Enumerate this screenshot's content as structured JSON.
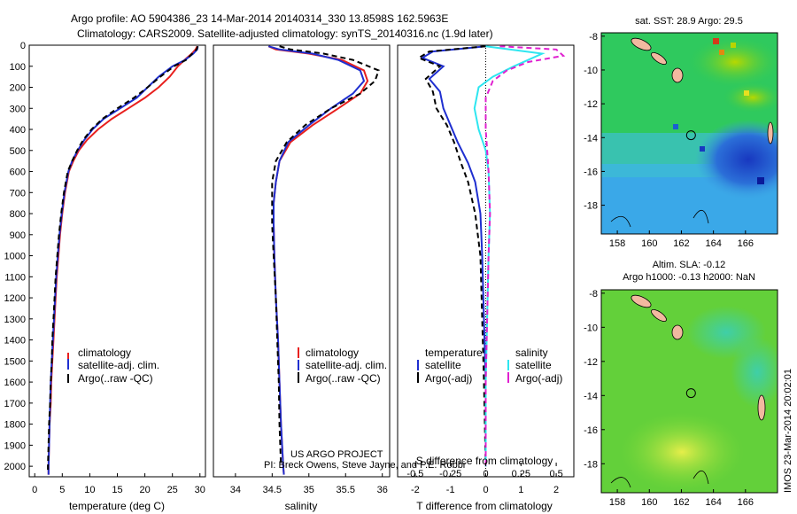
{
  "header": {
    "title_line1": "Argo profile: AO 5904386_23 14-Mar-2014 20140314_330 13.8598S 162.5963E",
    "title_line2": "Climatology: CARS2009. Satellite-adjusted climatology: synTS_20140316.nc (1.9d later)"
  },
  "colors": {
    "climatology": "#e8201e",
    "satellite": "#1f2fd0",
    "argo": "#000000",
    "satellite_s": "#2ee6f0",
    "argo_s": "#e020d0"
  },
  "chart_data": [
    {
      "type": "line",
      "id": "temperature",
      "xlabel": "temperature (deg C)",
      "ylabel": "",
      "xlim": [
        -1,
        31
      ],
      "ylim": [
        2050,
        0
      ],
      "xticks": [
        0,
        5,
        10,
        15,
        20,
        25,
        30
      ],
      "yticks": [
        0,
        100,
        200,
        300,
        400,
        500,
        600,
        700,
        800,
        900,
        1000,
        1100,
        1200,
        1300,
        1400,
        1500,
        1600,
        1700,
        1800,
        1900,
        2000
      ],
      "series": [
        {
          "name": "climatology",
          "color_key": "climatology",
          "dash": "",
          "points": [
            [
              29.5,
              5
            ],
            [
              29.2,
              20
            ],
            [
              28.5,
              40
            ],
            [
              27.2,
              70
            ],
            [
              26,
              100
            ],
            [
              24.5,
              150
            ],
            [
              22.5,
              200
            ],
            [
              20,
              250
            ],
            [
              17,
              300
            ],
            [
              14,
              350
            ],
            [
              11.5,
              400
            ],
            [
              9.5,
              450
            ],
            [
              8,
              500
            ],
            [
              7,
              550
            ],
            [
              6.2,
              600
            ],
            [
              5.5,
              700
            ],
            [
              5,
              800
            ],
            [
              4.6,
              900
            ],
            [
              4.3,
              1000
            ],
            [
              4,
              1100
            ],
            [
              3.8,
              1200
            ],
            [
              3.6,
              1300
            ],
            [
              3.4,
              1400
            ],
            [
              3.2,
              1500
            ],
            [
              3,
              1600
            ],
            [
              2.9,
              1700
            ],
            [
              2.7,
              1800
            ],
            [
              2.6,
              1900
            ],
            [
              2.5,
              2000
            ],
            [
              2.5,
              2040
            ]
          ]
        },
        {
          "name": "satellite-adj. clim.",
          "color_key": "satellite",
          "dash": "",
          "points": [
            [
              29.6,
              5
            ],
            [
              29.5,
              20
            ],
            [
              28.8,
              40
            ],
            [
              27.3,
              70
            ],
            [
              25,
              100
            ],
            [
              22.5,
              150
            ],
            [
              20.5,
              200
            ],
            [
              18.5,
              250
            ],
            [
              15.5,
              300
            ],
            [
              12.5,
              350
            ],
            [
              10.5,
              400
            ],
            [
              9,
              450
            ],
            [
              7.8,
              500
            ],
            [
              6.8,
              550
            ],
            [
              6.1,
              600
            ],
            [
              5.4,
              700
            ],
            [
              4.9,
              800
            ],
            [
              4.5,
              900
            ],
            [
              4.2,
              1000
            ],
            [
              3.9,
              1100
            ],
            [
              3.7,
              1200
            ],
            [
              3.5,
              1300
            ],
            [
              3.3,
              1400
            ],
            [
              3.1,
              1500
            ],
            [
              2.9,
              1600
            ],
            [
              2.8,
              1700
            ],
            [
              2.7,
              1800
            ],
            [
              2.6,
              1900
            ],
            [
              2.5,
              2000
            ],
            [
              2.5,
              2040
            ]
          ]
        },
        {
          "name": "Argo(..raw -QC)",
          "color_key": "argo",
          "dash": "6 4",
          "points": [
            [
              29.6,
              5
            ],
            [
              29.4,
              20
            ],
            [
              28.6,
              40
            ],
            [
              27.5,
              70
            ],
            [
              25.3,
              100
            ],
            [
              22.8,
              150
            ],
            [
              20.5,
              200
            ],
            [
              18,
              250
            ],
            [
              15,
              300
            ],
            [
              12.3,
              350
            ],
            [
              10.3,
              400
            ],
            [
              8.8,
              450
            ],
            [
              7.7,
              500
            ],
            [
              6.8,
              550
            ],
            [
              6,
              600
            ],
            [
              5.3,
              700
            ],
            [
              4.8,
              800
            ],
            [
              4.4,
              900
            ],
            [
              4.1,
              1000
            ],
            [
              3.8,
              1100
            ],
            [
              3.6,
              1200
            ],
            [
              3.4,
              1300
            ],
            [
              3.2,
              1400
            ],
            [
              3.1,
              1500
            ],
            [
              2.9,
              1600
            ],
            [
              2.8,
              1700
            ],
            [
              2.6,
              1800
            ],
            [
              2.5,
              1900
            ],
            [
              2.4,
              2000
            ],
            [
              2.4,
              2030
            ]
          ]
        }
      ],
      "legend": [
        "climatology",
        "satellite-adj. clim.",
        "Argo(..raw -QC)"
      ]
    },
    {
      "type": "line",
      "id": "salinity",
      "xlabel": "salinity",
      "xlim": [
        33.7,
        36.1
      ],
      "ylim": [
        2050,
        0
      ],
      "xticks": [
        34,
        34.5,
        35,
        35.5,
        36
      ],
      "series": [
        {
          "name": "climatology",
          "color_key": "climatology",
          "dash": "",
          "points": [
            [
              34.45,
              5
            ],
            [
              34.55,
              20
            ],
            [
              35,
              40
            ],
            [
              35.45,
              70
            ],
            [
              35.75,
              120
            ],
            [
              35.8,
              170
            ],
            [
              35.7,
              230
            ],
            [
              35.4,
              300
            ],
            [
              35.05,
              380
            ],
            [
              34.75,
              460
            ],
            [
              34.6,
              550
            ],
            [
              34.55,
              650
            ],
            [
              34.52,
              750
            ],
            [
              34.52,
              850
            ],
            [
              34.53,
              1000
            ],
            [
              34.55,
              1200
            ],
            [
              34.58,
              1400
            ],
            [
              34.6,
              1600
            ],
            [
              34.62,
              1800
            ],
            [
              34.65,
              2000
            ],
            [
              34.66,
              2040
            ]
          ]
        },
        {
          "name": "satellite-adj. clim.",
          "color_key": "satellite",
          "dash": "",
          "points": [
            [
              34.45,
              5
            ],
            [
              34.6,
              20
            ],
            [
              35.05,
              40
            ],
            [
              35.4,
              70
            ],
            [
              35.7,
              120
            ],
            [
              35.75,
              170
            ],
            [
              35.6,
              230
            ],
            [
              35.3,
              300
            ],
            [
              35,
              380
            ],
            [
              34.72,
              460
            ],
            [
              34.6,
              550
            ],
            [
              34.55,
              650
            ],
            [
              34.52,
              750
            ],
            [
              34.52,
              850
            ],
            [
              34.53,
              1000
            ],
            [
              34.55,
              1200
            ],
            [
              34.58,
              1400
            ],
            [
              34.6,
              1600
            ],
            [
              34.62,
              1800
            ],
            [
              34.65,
              2000
            ],
            [
              34.66,
              2040
            ]
          ]
        },
        {
          "name": "Argo(..raw -QC)",
          "color_key": "argo",
          "dash": "6 4",
          "points": [
            [
              34.6,
              5
            ],
            [
              34.75,
              20
            ],
            [
              35.2,
              40
            ],
            [
              35.6,
              70
            ],
            [
              35.95,
              120
            ],
            [
              35.9,
              170
            ],
            [
              35.7,
              230
            ],
            [
              35.3,
              300
            ],
            [
              34.95,
              380
            ],
            [
              34.7,
              460
            ],
            [
              34.55,
              550
            ],
            [
              34.5,
              650
            ],
            [
              34.5,
              750
            ],
            [
              34.5,
              850
            ],
            [
              34.52,
              1000
            ],
            [
              34.55,
              1200
            ],
            [
              34.57,
              1400
            ],
            [
              34.59,
              1600
            ],
            [
              34.6,
              1800
            ],
            [
              34.62,
              2000
            ]
          ]
        }
      ],
      "legend": [
        "climatology",
        "satellite-adj. clim.",
        "Argo(..raw -QC)"
      ]
    },
    {
      "type": "line",
      "id": "differences",
      "xlabel": "T difference from climatology",
      "top_xlabel": "S difference from climatology",
      "xlim": [
        -2.5,
        2.5
      ],
      "ylim": [
        2050,
        0
      ],
      "xticks": [
        -2,
        -1,
        0,
        1,
        2
      ],
      "s_xlim": [
        -0.625,
        0.625
      ],
      "s_xticks": [
        -0.5,
        -0.25,
        0,
        0.25,
        0.5
      ],
      "s_xtick_labels": [
        "-0.5",
        "-0.25",
        "0",
        "0.25",
        "0.5"
      ],
      "series": [
        {
          "name": "satellite",
          "group": "temperature",
          "color_key": "satellite",
          "dash": "",
          "points": [
            [
              0,
              5
            ],
            [
              -1.5,
              30
            ],
            [
              -1.8,
              60
            ],
            [
              -1.2,
              100
            ],
            [
              -1.6,
              160
            ],
            [
              -1.3,
              220
            ],
            [
              -1.2,
              300
            ],
            [
              -1,
              380
            ],
            [
              -0.8,
              460
            ],
            [
              -0.5,
              560
            ],
            [
              -0.3,
              650
            ],
            [
              -0.15,
              800
            ],
            [
              -0.1,
              1000
            ],
            [
              -0.05,
              1300
            ],
            [
              0,
              1600
            ],
            [
              0,
              2000
            ]
          ]
        },
        {
          "name": "Argo(-adj)",
          "group": "temperature",
          "color_key": "argo",
          "dash": "6 4",
          "points": [
            [
              0,
              5
            ],
            [
              -1.6,
              30
            ],
            [
              -1.9,
              60
            ],
            [
              -1.3,
              100
            ],
            [
              -1.7,
              160
            ],
            [
              -1.5,
              220
            ],
            [
              -1.4,
              300
            ],
            [
              -1.1,
              380
            ],
            [
              -0.9,
              460
            ],
            [
              -0.7,
              560
            ],
            [
              -0.5,
              650
            ],
            [
              -0.3,
              800
            ],
            [
              -0.15,
              1000
            ],
            [
              -0.1,
              1300
            ],
            [
              -0.05,
              1600
            ],
            [
              0,
              2000
            ]
          ]
        },
        {
          "name": "satellite",
          "group": "salinity",
          "color_key": "satellite_s",
          "dash": "",
          "points": [
            [
              0,
              5
            ],
            [
              0.4,
              40
            ],
            [
              0.2,
              100
            ],
            [
              0.05,
              150
            ],
            [
              -0.05,
              200
            ],
            [
              -0.08,
              300
            ],
            [
              -0.05,
              400
            ],
            [
              0,
              500
            ],
            [
              0.02,
              600
            ],
            [
              0.03,
              800
            ],
            [
              0.02,
              1000
            ],
            [
              0.01,
              1300
            ],
            [
              0,
              1600
            ],
            [
              0,
              2000
            ]
          ]
        },
        {
          "name": "Argo(-adj)",
          "group": "salinity",
          "color_key": "argo_s",
          "dash": "6 4",
          "points": [
            [
              0.1,
              5
            ],
            [
              0.5,
              20
            ],
            [
              0.55,
              50
            ],
            [
              0.3,
              80
            ],
            [
              0.15,
              120
            ],
            [
              0.05,
              170
            ],
            [
              0,
              250
            ],
            [
              0,
              400
            ],
            [
              0.02,
              600
            ],
            [
              0.03,
              800
            ],
            [
              0.02,
              1000
            ],
            [
              0.01,
              1300
            ],
            [
              0,
              1600
            ],
            [
              0,
              2000
            ]
          ]
        }
      ],
      "legend_temperature": {
        "title": "temperature",
        "items": [
          "satellite",
          "Argo(-adj)"
        ]
      },
      "legend_salinity": {
        "title": "salinity",
        "items": [
          "satellite",
          "Argo(-adj)"
        ]
      }
    },
    {
      "type": "heatmap",
      "id": "sst_map",
      "title": "sat. SST: 28.9 Argo: 29.5",
      "xlim": [
        157,
        168
      ],
      "ylim": [
        -19.7,
        -7.8
      ],
      "xticks": [
        158,
        160,
        162,
        164,
        166
      ],
      "yticks": [
        -8,
        -10,
        -12,
        -14,
        -16,
        -18
      ],
      "argo_position": [
        162.6,
        -13.86
      ]
    },
    {
      "type": "heatmap",
      "id": "sla_map",
      "title_line1": "Altim. SLA: -0.12",
      "title_line2": "Argo h1000: -0.13 h2000: NaN",
      "xlim": [
        157,
        168
      ],
      "ylim": [
        -19.7,
        -7.8
      ],
      "xticks": [
        158,
        160,
        162,
        164,
        166
      ],
      "yticks": [
        -8,
        -10,
        -12,
        -14,
        -16,
        -18
      ],
      "argo_position": [
        162.6,
        -13.86
      ]
    }
  ],
  "footer": {
    "project_line1": "US ARGO PROJECT",
    "project_line2": "PI: Breck Owens, Steve Jayne, and P.E. Robbi",
    "stamp": "IMOS 23-Mar-2014 20:02:01"
  }
}
